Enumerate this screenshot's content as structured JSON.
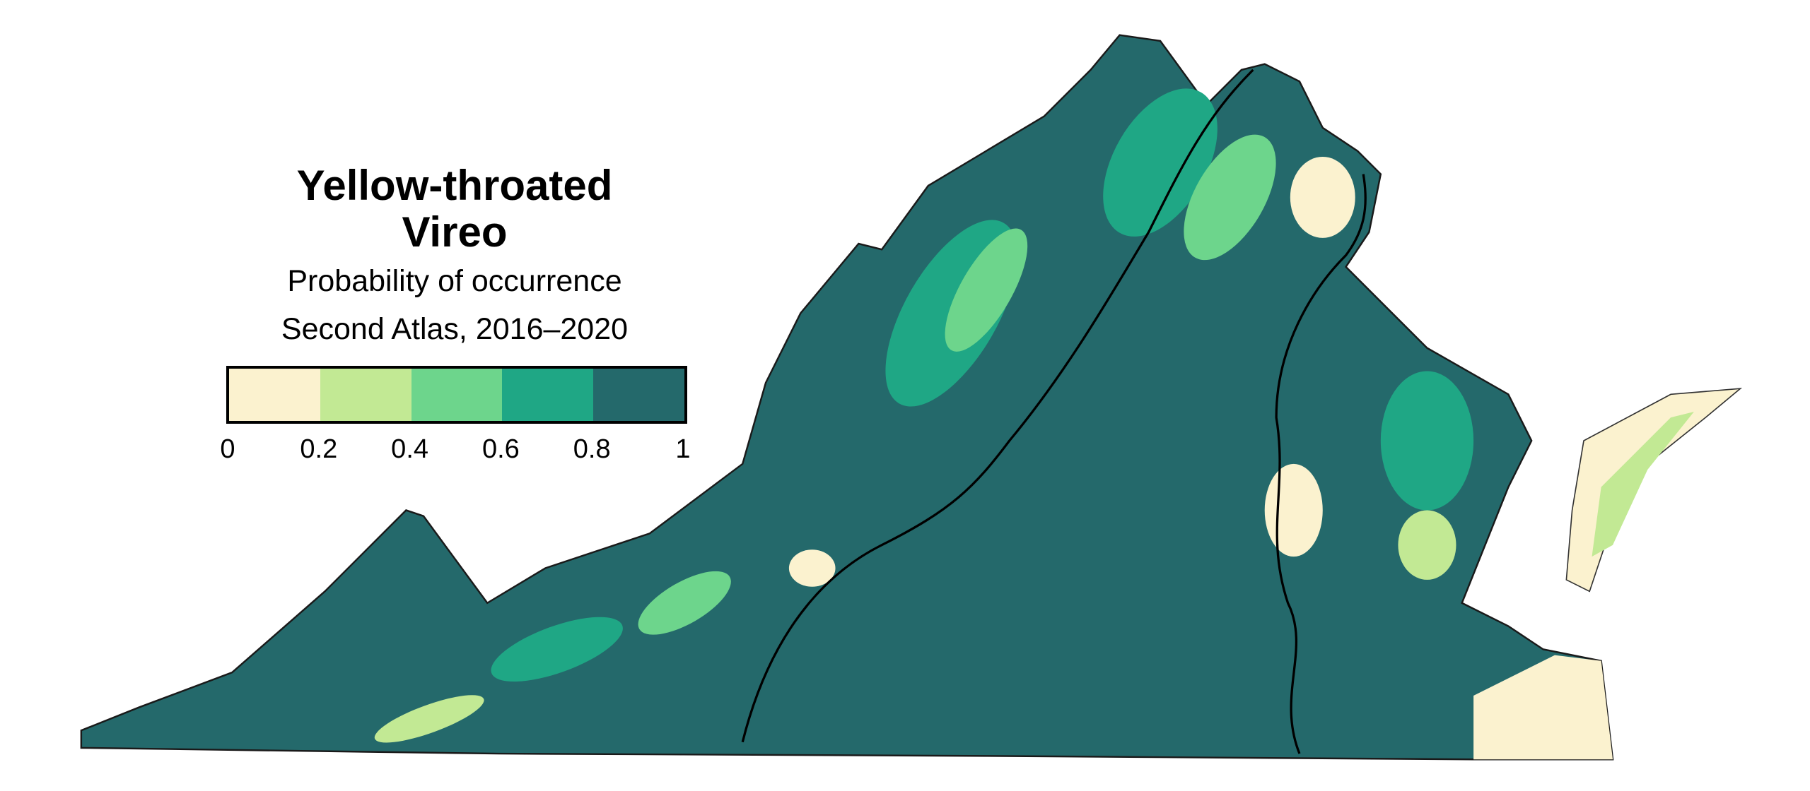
{
  "legend": {
    "title_line1": "Yellow-throated",
    "title_line2": "Vireo",
    "subtitle_line1": "Probability of occurrence",
    "subtitle_line2": "Second Atlas, 2016–2020",
    "bins": [
      {
        "range": [
          0,
          0.2
        ],
        "color": "#fbf2cf"
      },
      {
        "range": [
          0.2,
          0.4
        ],
        "color": "#c2e994"
      },
      {
        "range": [
          0.4,
          0.6
        ],
        "color": "#6dd58c"
      },
      {
        "range": [
          0.6,
          0.8
        ],
        "color": "#1fa785"
      },
      {
        "range": [
          0.8,
          1
        ],
        "color": "#24696b"
      }
    ],
    "ticks": [
      "0",
      "0.2",
      "0.4",
      "0.6",
      "0.8",
      "1"
    ]
  },
  "map": {
    "region": "Virginia",
    "dominant_color": "#24696b",
    "boundary_color": "#000000"
  }
}
